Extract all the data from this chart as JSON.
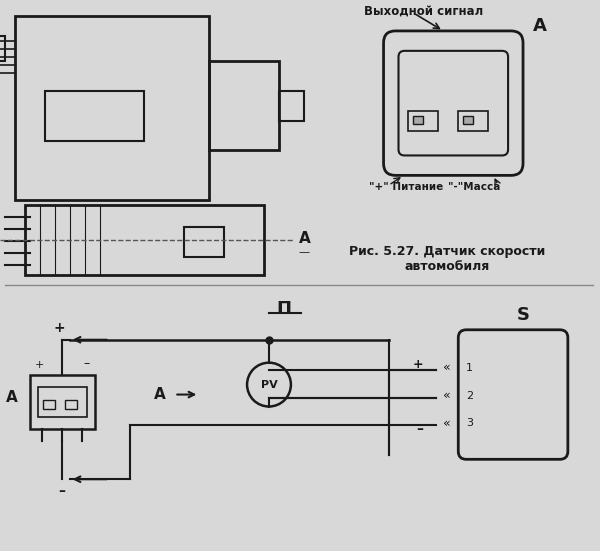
{
  "bg_color": "#d8d8d8",
  "title_top": "",
  "fig_width": 6.0,
  "fig_height": 5.51,
  "text_color": "#1a1a1a",
  "caption": "Рис. 5.27. Датчик скорости\nавтомобиля",
  "label_A_top": "А",
  "label_A_bottom": "А",
  "label_S": "S",
  "label_PV": "PV",
  "label_II": "П",
  "label_plus_top": "+",
  "label_minus_bottom": "–",
  "label_plus_sensor": "+",
  "label_minus_sensor": "–",
  "label_signal": "Выходной сигнал",
  "label_питание": "\"+\" Питание",
  "label_масса": "\"-\"Масса",
  "pin1": "1",
  "pin2": "2",
  "pin3": "3"
}
